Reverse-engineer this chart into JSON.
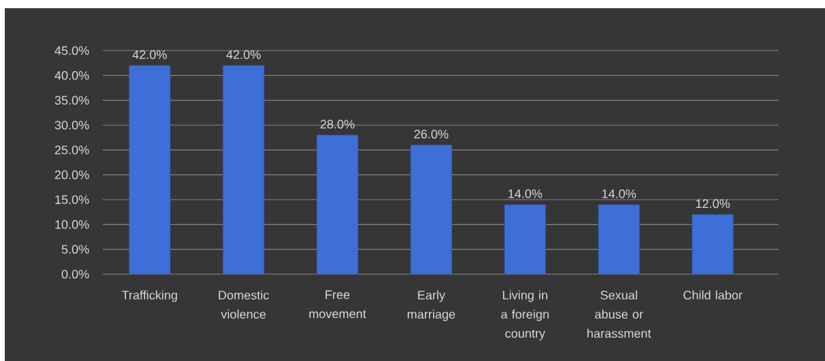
{
  "chart_data": {
    "type": "bar",
    "categories": [
      "Trafficking",
      "Domestic violence",
      "Free movement",
      "Early marriage",
      "Living in a foreign country",
      "Sexual abuse or harassment",
      "Child labor"
    ],
    "values": [
      42.0,
      42.0,
      28.0,
      26.0,
      14.0,
      14.0,
      12.0
    ],
    "value_labels": [
      "42.0%",
      "42.0%",
      "28.0%",
      "26.0%",
      "14.0%",
      "14.0%",
      "12.0%"
    ],
    "color": "#3e6fd8",
    "ylim": [
      0,
      45
    ],
    "yticks": [
      {
        "value": 0,
        "label": "0.0%"
      },
      {
        "value": 5,
        "label": "5.0%"
      },
      {
        "value": 10,
        "label": "10.0%"
      },
      {
        "value": 15,
        "label": "15.0%"
      },
      {
        "value": 20,
        "label": "20.0%"
      },
      {
        "value": 25,
        "label": "25.0%"
      },
      {
        "value": 30,
        "label": "30.0%"
      },
      {
        "value": 35,
        "label": "35.0%"
      },
      {
        "value": 40,
        "label": "40.0%"
      },
      {
        "value": 45,
        "label": "45.0%"
      }
    ],
    "grid": "y"
  }
}
